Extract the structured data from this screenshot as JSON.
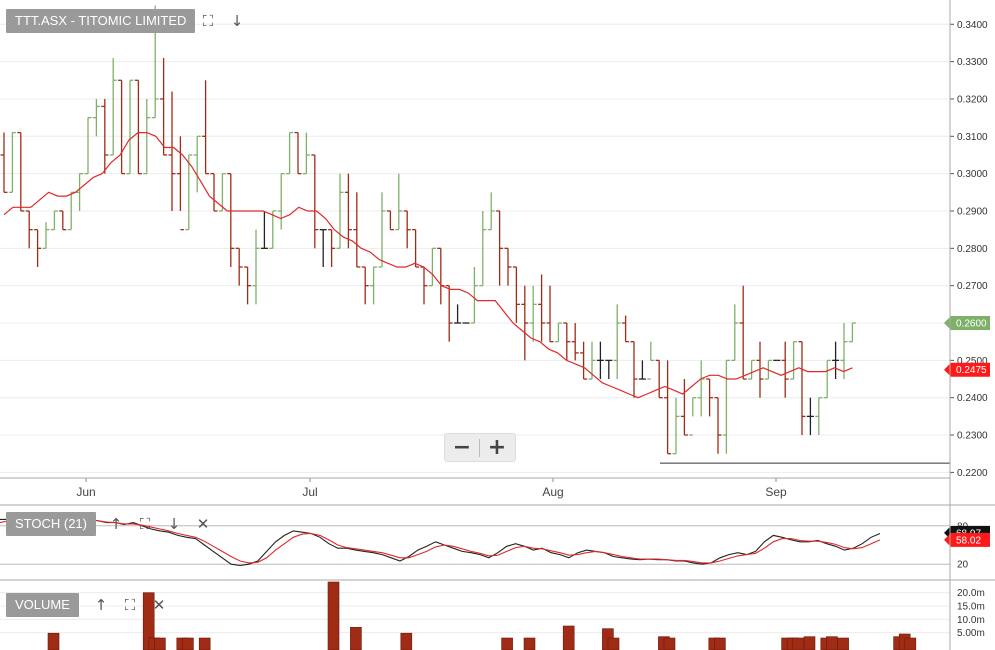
{
  "header": {
    "symbol_label": "TTT.ASX - TITOMIC LIMITED",
    "expand_icon": "expand-icon",
    "download_icon": "arrow-down-icon"
  },
  "panels": {
    "stoch": {
      "label": "STOCH (21)",
      "icons": [
        "arrow-up-icon",
        "expand-icon",
        "arrow-down-icon",
        "close-icon"
      ]
    },
    "volume": {
      "label": "VOLUME",
      "icons": [
        "arrow-up-icon",
        "expand-icon",
        "close-icon"
      ]
    }
  },
  "zoom": {
    "minus": "−",
    "plus": "+"
  },
  "colors": {
    "up": "#7fb06a",
    "down": "#a12c16",
    "neutral": "#222222",
    "ma": "#e0292b",
    "grid": "#ececec"
  },
  "chart_data": [
    {
      "type": "ohlc",
      "title": "TTT.ASX - TITOMIC LIMITED",
      "x_months": [
        {
          "label": "Jun",
          "index": 11
        },
        {
          "label": "Jul",
          "index": 39
        },
        {
          "label": "Aug",
          "index": 69
        },
        {
          "label": "Sep",
          "index": 97
        }
      ],
      "ylim": [
        0.2185,
        0.3465
      ],
      "y_ticks": [
        "0.2200",
        "0.2300",
        "0.2400",
        "0.2500",
        "0.2600",
        "0.2700",
        "0.2800",
        "0.2900",
        "0.3000",
        "0.3100",
        "0.3200",
        "0.3300",
        "0.3400"
      ],
      "last_price": "0.2600",
      "ma_value": "0.2475",
      "support_line": 0.2225,
      "bars": [
        [
          0.305,
          0.311,
          0.295,
          0.295
        ],
        [
          0.295,
          0.311,
          0.295,
          0.311
        ],
        [
          0.311,
          0.311,
          0.29,
          0.29
        ],
        [
          0.29,
          0.29,
          0.28,
          0.285
        ],
        [
          0.285,
          0.285,
          0.275,
          0.28
        ],
        [
          0.28,
          0.287,
          0.28,
          0.285
        ],
        [
          0.285,
          0.29,
          0.285,
          0.29
        ],
        [
          0.29,
          0.29,
          0.285,
          0.285
        ],
        [
          0.285,
          0.295,
          0.285,
          0.295
        ],
        [
          0.295,
          0.3,
          0.29,
          0.3
        ],
        [
          0.3,
          0.315,
          0.3,
          0.315
        ],
        [
          0.315,
          0.32,
          0.31,
          0.318
        ],
        [
          0.318,
          0.32,
          0.3,
          0.305
        ],
        [
          0.305,
          0.331,
          0.305,
          0.325
        ],
        [
          0.325,
          0.325,
          0.3,
          0.3
        ],
        [
          0.3,
          0.325,
          0.3,
          0.325
        ],
        [
          0.325,
          0.325,
          0.3,
          0.3
        ],
        [
          0.3,
          0.32,
          0.3,
          0.315
        ],
        [
          0.315,
          0.345,
          0.315,
          0.32
        ],
        [
          0.32,
          0.331,
          0.305,
          0.305
        ],
        [
          0.305,
          0.322,
          0.29,
          0.3
        ],
        [
          0.3,
          0.31,
          0.29,
          0.285
        ],
        [
          0.285,
          0.305,
          0.285,
          0.305
        ],
        [
          0.305,
          0.31,
          0.295,
          0.31
        ],
        [
          0.31,
          0.325,
          0.3,
          0.3
        ],
        [
          0.3,
          0.3,
          0.29,
          0.29
        ],
        [
          0.29,
          0.3,
          0.29,
          0.3
        ],
        [
          0.3,
          0.3,
          0.275,
          0.28
        ],
        [
          0.28,
          0.28,
          0.27,
          0.275
        ],
        [
          0.275,
          0.275,
          0.265,
          0.27
        ],
        [
          0.27,
          0.285,
          0.265,
          0.28
        ],
        [
          0.28,
          0.29,
          0.28,
          0.28
        ],
        [
          0.28,
          0.29,
          0.28,
          0.29
        ],
        [
          0.29,
          0.3,
          0.285,
          0.3
        ],
        [
          0.3,
          0.311,
          0.3,
          0.311
        ],
        [
          0.311,
          0.311,
          0.3,
          0.3
        ],
        [
          0.3,
          0.311,
          0.3,
          0.305
        ],
        [
          0.305,
          0.305,
          0.28,
          0.285
        ],
        [
          0.285,
          0.285,
          0.275,
          0.285
        ],
        [
          0.285,
          0.285,
          0.275,
          0.28
        ],
        [
          0.28,
          0.3,
          0.28,
          0.295
        ],
        [
          0.295,
          0.3,
          0.28,
          0.285
        ],
        [
          0.285,
          0.295,
          0.275,
          0.275
        ],
        [
          0.275,
          0.275,
          0.265,
          0.27
        ],
        [
          0.27,
          0.275,
          0.265,
          0.275
        ],
        [
          0.275,
          0.295,
          0.275,
          0.29
        ],
        [
          0.29,
          0.29,
          0.285,
          0.285
        ],
        [
          0.285,
          0.3,
          0.285,
          0.29
        ],
        [
          0.29,
          0.29,
          0.28,
          0.285
        ],
        [
          0.285,
          0.285,
          0.275,
          0.275
        ],
        [
          0.275,
          0.275,
          0.265,
          0.27
        ],
        [
          0.27,
          0.28,
          0.27,
          0.28
        ],
        [
          0.28,
          0.28,
          0.265,
          0.27
        ],
        [
          0.27,
          0.27,
          0.255,
          0.26
        ],
        [
          0.26,
          0.265,
          0.26,
          0.26
        ],
        [
          0.26,
          0.26,
          0.26,
          0.26
        ],
        [
          0.26,
          0.275,
          0.26,
          0.27
        ],
        [
          0.27,
          0.29,
          0.27,
          0.285
        ],
        [
          0.285,
          0.295,
          0.285,
          0.29
        ],
        [
          0.29,
          0.29,
          0.27,
          0.28
        ],
        [
          0.28,
          0.28,
          0.27,
          0.275
        ],
        [
          0.275,
          0.275,
          0.26,
          0.265
        ],
        [
          0.265,
          0.27,
          0.25,
          0.26
        ],
        [
          0.26,
          0.27,
          0.255,
          0.265
        ],
        [
          0.265,
          0.273,
          0.255,
          0.26
        ],
        [
          0.26,
          0.27,
          0.255,
          0.255
        ],
        [
          0.255,
          0.26,
          0.255,
          0.26
        ],
        [
          0.26,
          0.26,
          0.25,
          0.255
        ],
        [
          0.255,
          0.26,
          0.25,
          0.252
        ],
        [
          0.252,
          0.255,
          0.245,
          0.245
        ],
        [
          0.245,
          0.255,
          0.245,
          0.25
        ],
        [
          0.25,
          0.255,
          0.245,
          0.25
        ],
        [
          0.25,
          0.25,
          0.245,
          0.25
        ],
        [
          0.25,
          0.265,
          0.245,
          0.26
        ],
        [
          0.26,
          0.262,
          0.255,
          0.255
        ],
        [
          0.255,
          0.255,
          0.24,
          0.245
        ],
        [
          0.245,
          0.25,
          0.245,
          0.245
        ],
        [
          0.245,
          0.255,
          0.25,
          0.25
        ],
        [
          0.25,
          0.25,
          0.24,
          0.24
        ],
        [
          0.24,
          0.25,
          0.225,
          0.225
        ],
        [
          0.225,
          0.24,
          0.225,
          0.235
        ],
        [
          0.235,
          0.245,
          0.23,
          0.23
        ],
        [
          0.23,
          0.24,
          0.235,
          0.24
        ],
        [
          0.24,
          0.25,
          0.235,
          0.245
        ],
        [
          0.245,
          0.245,
          0.235,
          0.24
        ],
        [
          0.24,
          0.24,
          0.225,
          0.23
        ],
        [
          0.23,
          0.25,
          0.225,
          0.25
        ],
        [
          0.25,
          0.265,
          0.25,
          0.26
        ],
        [
          0.26,
          0.27,
          0.245,
          0.245
        ],
        [
          0.245,
          0.25,
          0.245,
          0.25
        ],
        [
          0.25,
          0.255,
          0.24,
          0.245
        ],
        [
          0.245,
          0.25,
          0.245,
          0.25
        ],
        [
          0.25,
          0.25,
          0.25,
          0.25
        ],
        [
          0.25,
          0.255,
          0.24,
          0.245
        ],
        [
          0.245,
          0.255,
          0.245,
          0.255
        ],
        [
          0.255,
          0.255,
          0.23,
          0.235
        ],
        [
          0.235,
          0.24,
          0.23,
          0.235
        ],
        [
          0.235,
          0.24,
          0.23,
          0.24
        ],
        [
          0.24,
          0.25,
          0.24,
          0.25
        ],
        [
          0.25,
          0.255,
          0.245,
          0.25
        ],
        [
          0.25,
          0.26,
          0.245,
          0.255
        ],
        [
          0.255,
          0.26,
          0.255,
          0.26
        ]
      ],
      "ma": [
        0.289,
        0.291,
        0.291,
        0.291,
        0.293,
        0.295,
        0.294,
        0.294,
        0.295,
        0.297,
        0.299,
        0.3,
        0.303,
        0.305,
        0.309,
        0.311,
        0.311,
        0.31,
        0.307,
        0.307,
        0.305,
        0.302,
        0.298,
        0.294,
        0.292,
        0.29,
        0.29,
        0.29,
        0.29,
        0.29,
        0.289,
        0.288,
        0.289,
        0.291,
        0.29,
        0.29,
        0.288,
        0.285,
        0.283,
        0.282,
        0.28,
        0.279,
        0.277,
        0.276,
        0.275,
        0.275,
        0.276,
        0.275,
        0.273,
        0.27,
        0.269,
        0.269,
        0.268,
        0.266,
        0.266,
        0.266,
        0.263,
        0.26,
        0.258,
        0.256,
        0.255,
        0.253,
        0.252,
        0.25,
        0.249,
        0.248,
        0.246,
        0.244,
        0.243,
        0.242,
        0.241,
        0.24,
        0.241,
        0.242,
        0.243,
        0.242,
        0.241,
        0.243,
        0.245,
        0.246,
        0.246,
        0.245,
        0.245,
        0.246,
        0.247,
        0.248,
        0.247,
        0.246,
        0.247,
        0.248,
        0.247,
        0.247,
        0.247,
        0.248,
        0.247,
        0.248
      ],
      "ma_offset": 0
    },
    {
      "type": "line",
      "title": "STOCH (21)",
      "ylim": [
        0,
        100
      ],
      "y_ticks": [
        "80",
        "20"
      ],
      "k_value": "68.97",
      "d_value": "58.02",
      "series": [
        {
          "color": "#222222",
          "values": [
            90,
            90,
            85,
            80,
            82,
            80,
            85,
            88,
            90,
            92,
            90,
            88,
            85,
            85,
            82,
            85,
            80,
            75,
            72,
            70,
            65,
            62,
            60,
            50,
            40,
            30,
            20,
            18,
            20,
            25,
            40,
            55,
            65,
            72,
            70,
            68,
            62,
            52,
            45,
            45,
            42,
            40,
            38,
            35,
            30,
            25,
            32,
            42,
            48,
            55,
            50,
            45,
            40,
            38,
            35,
            30,
            38,
            48,
            52,
            48,
            42,
            45,
            38,
            35,
            30,
            38,
            42,
            40,
            38,
            32,
            30,
            28,
            27,
            28,
            27,
            27,
            25,
            25,
            22,
            20,
            22,
            30,
            35,
            38,
            35,
            40,
            55,
            65,
            62,
            58,
            55,
            55,
            57,
            52,
            48,
            42,
            45,
            52,
            62,
            68
          ]
        },
        {
          "color": "#e0292b",
          "values": [
            85,
            88,
            86,
            83,
            82,
            81,
            83,
            86,
            88,
            90,
            89,
            88,
            86,
            85,
            83,
            83,
            81,
            78,
            75,
            72,
            68,
            65,
            62,
            56,
            48,
            40,
            32,
            25,
            22,
            23,
            30,
            42,
            52,
            62,
            67,
            68,
            65,
            58,
            50,
            46,
            44,
            42,
            40,
            38,
            34,
            30,
            30,
            35,
            40,
            47,
            50,
            48,
            44,
            40,
            37,
            33,
            34,
            40,
            46,
            48,
            45,
            44,
            41,
            38,
            34,
            35,
            38,
            40,
            38,
            35,
            32,
            30,
            28,
            28,
            28,
            27,
            26,
            26,
            24,
            22,
            22,
            25,
            29,
            33,
            35,
            37,
            45,
            55,
            60,
            60,
            57,
            56,
            56,
            54,
            51,
            46,
            44,
            46,
            52,
            58
          ]
        }
      ]
    },
    {
      "type": "bar",
      "title": "VOLUME",
      "y_ticks": [
        "20.0m",
        "15.0m",
        "10.0m",
        "5.00m"
      ],
      "ylim": [
        0,
        24000000
      ],
      "values": [
        4800000,
        0,
        0,
        0,
        0,
        0,
        0,
        0,
        0,
        0,
        0,
        0,
        0,
        0,
        0,
        0,
        0,
        20000000,
        3000000,
        3000000,
        0,
        0,
        0,
        3000000,
        3000000,
        0,
        0,
        3000000,
        0,
        0,
        0,
        0,
        0,
        0,
        0,
        0,
        0,
        0,
        0,
        0,
        0,
        0,
        0,
        0,
        0,
        0,
        0,
        0,
        0,
        0,
        24000000,
        0,
        0,
        0,
        7000000,
        0,
        0,
        0,
        0,
        0,
        0,
        0,
        0,
        4800000,
        0,
        0,
        0,
        0,
        0,
        0,
        0,
        0,
        0,
        0,
        0,
        0,
        0,
        0,
        0,
        0,
        0,
        3000000,
        0,
        0,
        0,
        3000000,
        0,
        0,
        0,
        0,
        0,
        0,
        7500000,
        0,
        0,
        0,
        0,
        0,
        0,
        6500000,
        3000000,
        0,
        0,
        0,
        0,
        0,
        0,
        0,
        0,
        3500000,
        3000000,
        0,
        0,
        0,
        0,
        0,
        0,
        0,
        3000000,
        3000000,
        0,
        0,
        0,
        0,
        0,
        0,
        0,
        0,
        0,
        0,
        0,
        3000000,
        3000000,
        3000000,
        0,
        3500000,
        0,
        0,
        3000000,
        3500000,
        0,
        3000000,
        0,
        0,
        0,
        0,
        0,
        0,
        0,
        0,
        0,
        3500000,
        4500000,
        3000000,
        0,
        0
      ]
    }
  ]
}
